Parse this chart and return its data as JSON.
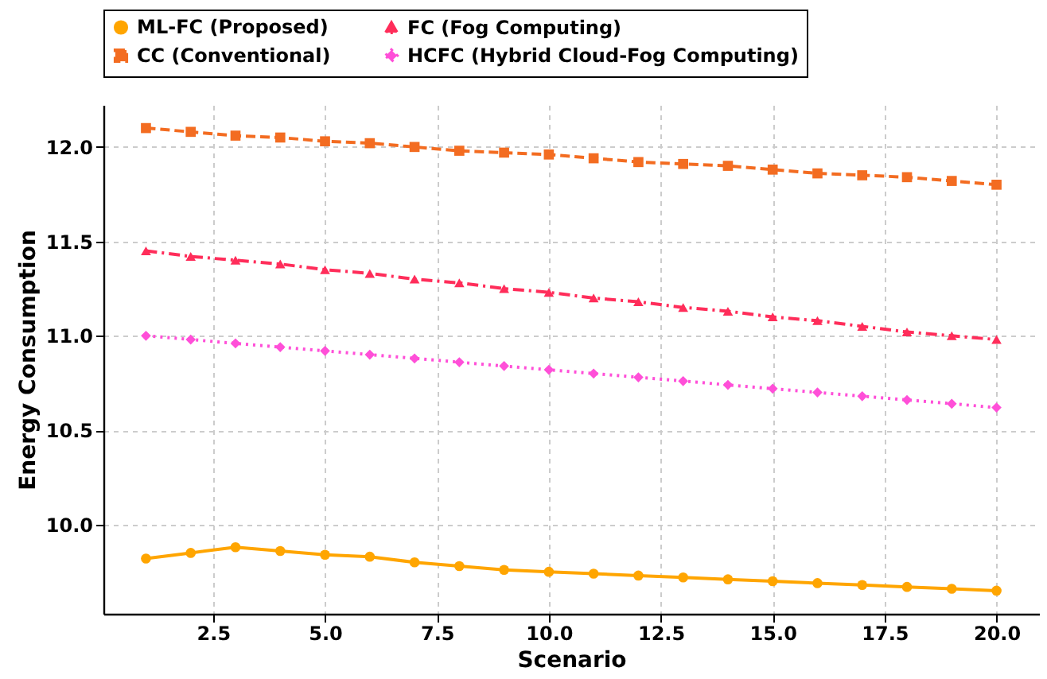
{
  "chart_data": {
    "type": "line",
    "xlabel": "Scenario",
    "ylabel": "Energy Consumption",
    "x": [
      1,
      2,
      3,
      4,
      5,
      6,
      7,
      8,
      9,
      10,
      11,
      12,
      13,
      14,
      15,
      16,
      17,
      18,
      19,
      20
    ],
    "series": [
      {
        "name": "ML-FC (Proposed)",
        "color": "#ffa500",
        "marker": "circle",
        "line_style": "solid",
        "values": [
          9.82,
          9.85,
          9.88,
          9.86,
          9.84,
          9.83,
          9.8,
          9.78,
          9.76,
          9.75,
          9.74,
          9.73,
          9.72,
          9.71,
          9.7,
          9.69,
          9.68,
          9.67,
          9.66,
          9.65
        ]
      },
      {
        "name": "CC (Conventional)",
        "color": "#f36c21",
        "marker": "square",
        "line_style": "dashed",
        "values": [
          12.1,
          12.08,
          12.06,
          12.05,
          12.03,
          12.02,
          12.0,
          11.98,
          11.97,
          11.96,
          11.94,
          11.92,
          11.91,
          11.9,
          11.88,
          11.86,
          11.85,
          11.84,
          11.82,
          11.8
        ]
      },
      {
        "name": "FC (Fog Computing)",
        "color": "#ff2d5a",
        "marker": "triangle",
        "line_style": "dashdot",
        "values": [
          11.45,
          11.42,
          11.4,
          11.38,
          11.35,
          11.33,
          11.3,
          11.28,
          11.25,
          11.23,
          11.2,
          11.18,
          11.15,
          11.13,
          11.1,
          11.08,
          11.05,
          11.02,
          11.0,
          10.98
        ]
      },
      {
        "name": "HCFC (Hybrid Cloud-Fog Computing)",
        "color": "#ff4fd8",
        "marker": "diamond",
        "line_style": "dotted",
        "values": [
          11.0,
          10.98,
          10.96,
          10.94,
          10.92,
          10.9,
          10.88,
          10.86,
          10.84,
          10.82,
          10.8,
          10.78,
          10.76,
          10.74,
          10.72,
          10.7,
          10.68,
          10.66,
          10.64,
          10.62
        ]
      }
    ],
    "xlim": [
      0.05,
      20.95
    ],
    "xticks": [
      2.5,
      {
        "value": 5,
        "label": "5.0"
      },
      7.5,
      {
        "value": 10,
        "label": "10.0"
      },
      12.5,
      {
        "value": 15,
        "label": "15.0"
      },
      17.5,
      {
        "value": 20,
        "label": "20.0"
      }
    ],
    "ylim": [
      9.5275,
      12.2225
    ],
    "yticks": [
      {
        "value": 10,
        "label": "10.0"
      },
      10.5,
      {
        "value": 11,
        "label": "11.0"
      },
      11.5,
      {
        "value": 12,
        "label": "12.0"
      }
    ],
    "grid": true,
    "legend": "top"
  }
}
